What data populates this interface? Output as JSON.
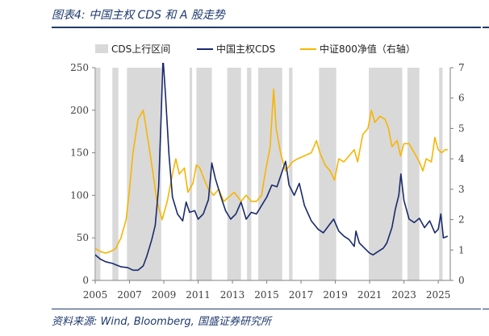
{
  "figure": {
    "title": "图表4:  中国主权 CDS 和 A 股走势",
    "source": "资料来源:  Wind,  Bloomberg,  国盛证券研究所"
  },
  "chart_data": {
    "type": "line",
    "x_range": [
      2005.0,
      2025.7
    ],
    "x_ticks": [
      2005,
      2007,
      2009,
      2011,
      2013,
      2015,
      2017,
      2019,
      2021,
      2023,
      2025
    ],
    "y_left": {
      "range": [
        0,
        250
      ],
      "ticks": [
        0,
        50,
        100,
        150,
        200,
        250
      ]
    },
    "y_right": {
      "range": [
        0,
        7
      ],
      "ticks": [
        0,
        1,
        2,
        3,
        4,
        5,
        6,
        7
      ]
    },
    "legend": {
      "placement": "top",
      "items": [
        {
          "label": "CDS上行区间",
          "kind": "band"
        },
        {
          "label": "中国主权CDS",
          "kind": "line"
        },
        {
          "label": "中证800净值（右轴）",
          "kind": "line"
        }
      ]
    },
    "colors": {
      "cds": "#1a2a6c",
      "csi": "#f7b500",
      "band": "#d9d9d9",
      "axis": "#7f7f7f"
    },
    "bands": [
      [
        2005.05,
        2005.3
      ],
      [
        2006.0,
        2006.35
      ],
      [
        2006.85,
        2008.85
      ],
      [
        2010.5,
        2010.65
      ],
      [
        2010.9,
        2011.8
      ],
      [
        2012.7,
        2013.5
      ],
      [
        2013.85,
        2014.1
      ],
      [
        2014.5,
        2015.9
      ],
      [
        2016.3,
        2016.5
      ],
      [
        2018.05,
        2019.05
      ],
      [
        2020.95,
        2022.9
      ],
      [
        2023.2,
        2023.9
      ],
      [
        2025.05,
        2025.25
      ]
    ],
    "series": [
      {
        "name": "中国主权CDS",
        "axis": "left",
        "points": [
          [
            2005.0,
            30
          ],
          [
            2005.3,
            25
          ],
          [
            2005.6,
            22
          ],
          [
            2006.0,
            20
          ],
          [
            2006.5,
            16
          ],
          [
            2006.9,
            15
          ],
          [
            2007.2,
            12
          ],
          [
            2007.5,
            12
          ],
          [
            2007.8,
            17
          ],
          [
            2008.0,
            28
          ],
          [
            2008.3,
            48
          ],
          [
            2008.5,
            65
          ],
          [
            2008.7,
            110
          ],
          [
            2008.85,
            195
          ],
          [
            2008.95,
            262
          ],
          [
            2009.1,
            218
          ],
          [
            2009.3,
            148
          ],
          [
            2009.5,
            98
          ],
          [
            2009.8,
            78
          ],
          [
            2010.1,
            70
          ],
          [
            2010.3,
            92
          ],
          [
            2010.5,
            80
          ],
          [
            2010.8,
            82
          ],
          [
            2011.0,
            72
          ],
          [
            2011.3,
            78
          ],
          [
            2011.6,
            95
          ],
          [
            2011.8,
            138
          ],
          [
            2012.0,
            120
          ],
          [
            2012.3,
            100
          ],
          [
            2012.6,
            82
          ],
          [
            2012.9,
            72
          ],
          [
            2013.2,
            78
          ],
          [
            2013.5,
            92
          ],
          [
            2013.8,
            72
          ],
          [
            2014.1,
            80
          ],
          [
            2014.4,
            78
          ],
          [
            2014.7,
            88
          ],
          [
            2015.0,
            98
          ],
          [
            2015.3,
            112
          ],
          [
            2015.6,
            110
          ],
          [
            2015.9,
            128
          ],
          [
            2016.1,
            140
          ],
          [
            2016.3,
            112
          ],
          [
            2016.6,
            100
          ],
          [
            2016.9,
            114
          ],
          [
            2017.2,
            88
          ],
          [
            2017.6,
            70
          ],
          [
            2018.0,
            60
          ],
          [
            2018.3,
            56
          ],
          [
            2018.6,
            64
          ],
          [
            2018.9,
            72
          ],
          [
            2019.2,
            58
          ],
          [
            2019.5,
            52
          ],
          [
            2019.8,
            48
          ],
          [
            2020.1,
            40
          ],
          [
            2020.2,
            58
          ],
          [
            2020.4,
            44
          ],
          [
            2020.7,
            38
          ],
          [
            2021.0,
            32
          ],
          [
            2021.2,
            30
          ],
          [
            2021.5,
            34
          ],
          [
            2021.8,
            38
          ],
          [
            2022.0,
            44
          ],
          [
            2022.3,
            62
          ],
          [
            2022.5,
            84
          ],
          [
            2022.7,
            100
          ],
          [
            2022.82,
            125
          ],
          [
            2023.0,
            94
          ],
          [
            2023.3,
            72
          ],
          [
            2023.6,
            68
          ],
          [
            2023.9,
            73
          ],
          [
            2024.2,
            62
          ],
          [
            2024.5,
            70
          ],
          [
            2024.8,
            56
          ],
          [
            2025.0,
            60
          ],
          [
            2025.15,
            78
          ],
          [
            2025.3,
            50
          ],
          [
            2025.55,
            52
          ]
        ]
      },
      {
        "name": "中证800净值（右轴）",
        "axis": "right",
        "points": [
          [
            2005.0,
            1.05
          ],
          [
            2005.3,
            0.95
          ],
          [
            2005.6,
            0.9
          ],
          [
            2005.9,
            0.95
          ],
          [
            2006.2,
            1.05
          ],
          [
            2006.5,
            1.4
          ],
          [
            2006.8,
            2.0
          ],
          [
            2007.0,
            3.0
          ],
          [
            2007.2,
            4.2
          ],
          [
            2007.5,
            5.3
          ],
          [
            2007.8,
            5.6
          ],
          [
            2008.0,
            4.9
          ],
          [
            2008.3,
            3.8
          ],
          [
            2008.6,
            2.6
          ],
          [
            2008.9,
            2.0
          ],
          [
            2009.2,
            2.6
          ],
          [
            2009.5,
            3.5
          ],
          [
            2009.7,
            4.0
          ],
          [
            2009.9,
            3.5
          ],
          [
            2010.2,
            3.7
          ],
          [
            2010.4,
            2.9
          ],
          [
            2010.7,
            3.2
          ],
          [
            2010.9,
            3.8
          ],
          [
            2011.1,
            3.7
          ],
          [
            2011.3,
            3.4
          ],
          [
            2011.6,
            3.0
          ],
          [
            2011.9,
            2.8
          ],
          [
            2012.2,
            3.0
          ],
          [
            2012.5,
            2.6
          ],
          [
            2012.9,
            2.8
          ],
          [
            2013.1,
            2.9
          ],
          [
            2013.5,
            2.6
          ],
          [
            2013.8,
            2.8
          ],
          [
            2014.1,
            2.6
          ],
          [
            2014.4,
            2.6
          ],
          [
            2014.7,
            2.8
          ],
          [
            2014.9,
            3.5
          ],
          [
            2015.2,
            4.4
          ],
          [
            2015.4,
            6.3
          ],
          [
            2015.55,
            5.0
          ],
          [
            2015.8,
            4.2
          ],
          [
            2016.0,
            3.8
          ],
          [
            2016.1,
            3.6
          ],
          [
            2016.5,
            3.9
          ],
          [
            2016.8,
            4.0
          ],
          [
            2017.2,
            4.1
          ],
          [
            2017.6,
            4.2
          ],
          [
            2017.9,
            4.6
          ],
          [
            2018.1,
            4.2
          ],
          [
            2018.4,
            3.8
          ],
          [
            2018.7,
            3.6
          ],
          [
            2018.95,
            3.3
          ],
          [
            2019.2,
            4.0
          ],
          [
            2019.5,
            3.9
          ],
          [
            2019.8,
            4.1
          ],
          [
            2020.1,
            4.3
          ],
          [
            2020.3,
            3.9
          ],
          [
            2020.6,
            4.8
          ],
          [
            2020.9,
            5.0
          ],
          [
            2021.1,
            5.6
          ],
          [
            2021.3,
            5.2
          ],
          [
            2021.6,
            5.4
          ],
          [
            2021.9,
            5.3
          ],
          [
            2022.1,
            5.0
          ],
          [
            2022.3,
            4.4
          ],
          [
            2022.6,
            4.6
          ],
          [
            2022.8,
            4.1
          ],
          [
            2023.0,
            4.5
          ],
          [
            2023.3,
            4.5
          ],
          [
            2023.6,
            4.2
          ],
          [
            2023.9,
            3.9
          ],
          [
            2024.1,
            3.6
          ],
          [
            2024.3,
            4.0
          ],
          [
            2024.6,
            3.9
          ],
          [
            2024.8,
            4.7
          ],
          [
            2025.0,
            4.3
          ],
          [
            2025.2,
            4.2
          ],
          [
            2025.4,
            4.3
          ],
          [
            2025.55,
            4.3
          ]
        ]
      }
    ]
  }
}
